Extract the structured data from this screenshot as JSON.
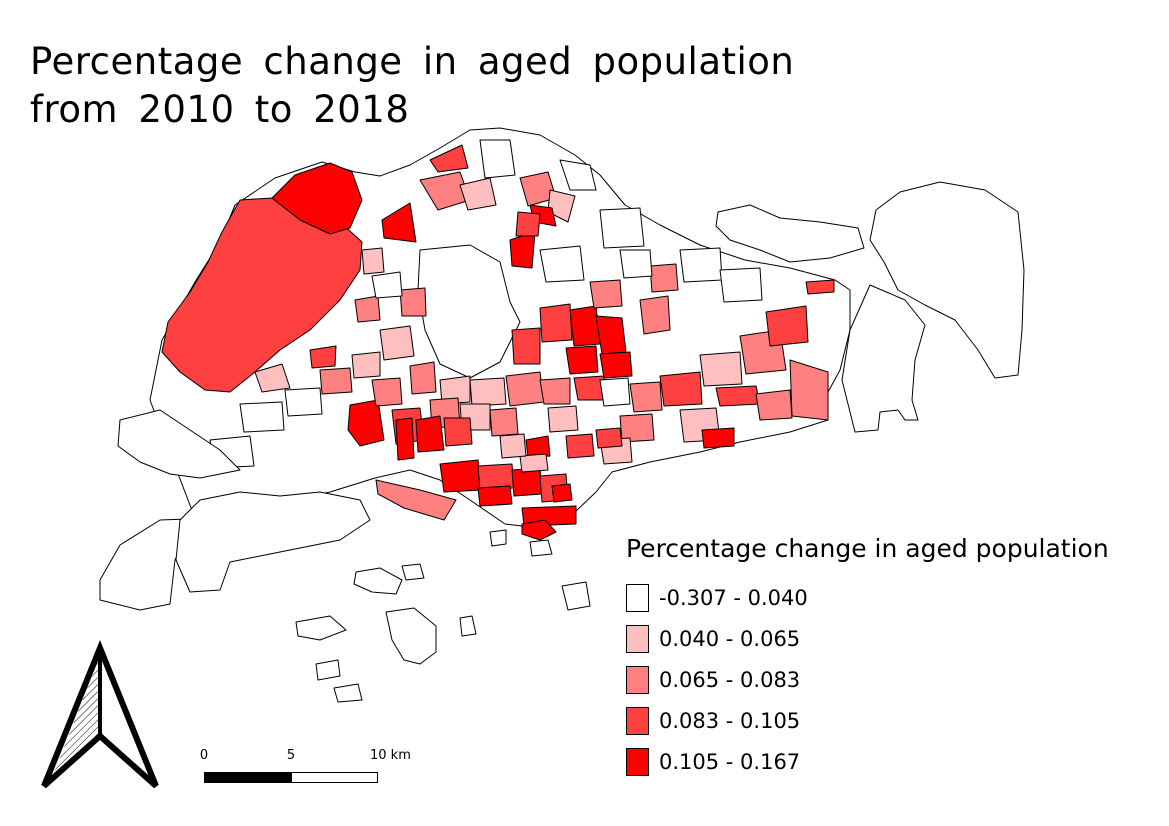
{
  "title": {
    "line1": "Percentage change in aged population",
    "line2": "from 2010 to 2018"
  },
  "legend": {
    "title": "Percentage change in aged population",
    "items": [
      {
        "label": "-0.307 - 0.040",
        "color": "#ffffff"
      },
      {
        "label": "0.040 - 0.065",
        "color": "#ffbfbf"
      },
      {
        "label": "0.065 - 0.083",
        "color": "#ff8080"
      },
      {
        "label": "0.083 - 0.105",
        "color": "#ff4040"
      },
      {
        "label": "0.105 - 0.167",
        "color": "#ff0000"
      }
    ]
  },
  "scale_bar": {
    "labels": [
      "0",
      "5",
      "10 km"
    ]
  },
  "map": {
    "region": "Singapore planning subzones",
    "class_colors": [
      "#ffffff",
      "#ffbfbf",
      "#ff8080",
      "#ff4040",
      "#ff0000"
    ],
    "border_color": "#000000",
    "north_arrow": "north-arrow-icon"
  }
}
